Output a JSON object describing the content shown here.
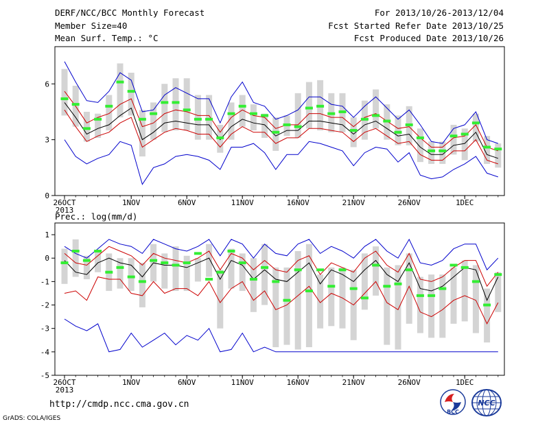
{
  "header": {
    "title": "DERF/NCC/BCC Monthly Forecast",
    "member_size": "Member Size=40",
    "variable": "Mean Surf. Temp.: °C",
    "period": "For 2013/10/26-2013/12/04",
    "started": "Fcst Started Refer Date 2013/10/25",
    "produced": "Fcst Produced Date 2013/10/26"
  },
  "footer": {
    "url": "http://cmdp.ncc.cma.gov.cn",
    "grads": "GrADS: COLA/IGES",
    "logo_left_text": "BCC",
    "logo_right_text": "NCC"
  },
  "colors": {
    "min_max": "#0000cc",
    "spread": "#cc0000",
    "mean": "#000000",
    "box": "#d4d4d4",
    "marker": "#33ee33"
  },
  "chart_data": [
    {
      "type": "line",
      "variable": "Mean Surf. Temp.: °C",
      "x_ticks": [
        "26OCT",
        "1NOV",
        "6NOV",
        "11NOV",
        "16NOV",
        "21NOV",
        "26NOV",
        "1DEC"
      ],
      "x_sub": "2013",
      "ylim": [
        0,
        8
      ],
      "yticks": [
        0,
        3,
        6
      ],
      "series": [
        {
          "role": "max",
          "values": [
            7.2,
            6.1,
            5.1,
            5.0,
            5.6,
            6.6,
            6.2,
            4.5,
            4.6,
            5.4,
            5.8,
            5.5,
            5.2,
            5.2,
            3.9,
            5.3,
            6.1,
            5.0,
            4.8,
            4.1,
            4.3,
            4.6,
            5.3,
            5.3,
            4.9,
            4.8,
            4.2,
            4.8,
            5.3,
            4.7,
            4.1,
            4.6,
            3.8,
            2.9,
            2.8,
            3.6,
            3.8,
            4.5,
            3.0,
            2.8
          ]
        },
        {
          "role": "upper",
          "values": [
            5.6,
            4.8,
            3.9,
            4.2,
            4.4,
            4.9,
            5.2,
            3.7,
            3.9,
            4.4,
            4.6,
            4.5,
            4.3,
            4.3,
            3.4,
            4.2,
            4.6,
            4.3,
            4.2,
            3.6,
            3.8,
            3.8,
            4.4,
            4.4,
            4.2,
            4.2,
            3.7,
            4.2,
            4.4,
            4.0,
            3.6,
            3.7,
            3.1,
            2.6,
            2.6,
            3.1,
            3.2,
            3.8,
            2.6,
            2.4
          ]
        },
        {
          "role": "mean",
          "values": [
            5.0,
            4.2,
            3.3,
            3.6,
            3.8,
            4.3,
            4.7,
            3.0,
            3.4,
            3.9,
            4.0,
            3.9,
            3.8,
            3.8,
            3.0,
            3.7,
            4.1,
            3.9,
            3.8,
            3.2,
            3.5,
            3.5,
            4.0,
            4.0,
            3.9,
            3.8,
            3.3,
            3.8,
            4.0,
            3.6,
            3.2,
            3.3,
            2.6,
            2.2,
            2.2,
            2.7,
            2.8,
            3.4,
            2.2,
            2.0
          ]
        },
        {
          "role": "lower",
          "values": [
            4.6,
            3.7,
            2.9,
            3.2,
            3.4,
            3.9,
            4.2,
            2.6,
            3.0,
            3.4,
            3.6,
            3.5,
            3.3,
            3.3,
            2.6,
            3.3,
            3.7,
            3.4,
            3.4,
            2.8,
            3.1,
            3.1,
            3.6,
            3.6,
            3.5,
            3.4,
            2.9,
            3.4,
            3.6,
            3.2,
            2.8,
            2.9,
            2.2,
            1.9,
            1.9,
            2.4,
            2.4,
            3.0,
            1.9,
            1.7
          ]
        },
        {
          "role": "min",
          "values": [
            3.0,
            2.1,
            1.7,
            2.0,
            2.2,
            2.9,
            2.7,
            0.6,
            1.5,
            1.7,
            2.1,
            2.2,
            2.1,
            1.9,
            1.4,
            2.6,
            2.6,
            2.8,
            2.3,
            1.4,
            2.2,
            2.2,
            2.9,
            2.8,
            2.6,
            2.4,
            1.6,
            2.3,
            2.6,
            2.5,
            1.8,
            2.3,
            1.1,
            0.9,
            1.0,
            1.4,
            1.7,
            2.1,
            1.2,
            1.0
          ]
        },
        {
          "role": "box_top",
          "values": [
            6.8,
            5.9,
            4.5,
            4.4,
            5.4,
            7.1,
            6.6,
            4.6,
            5.0,
            6.0,
            6.3,
            6.3,
            5.4,
            5.4,
            3.8,
            5.0,
            5.4,
            4.9,
            4.4,
            4.2,
            4.3,
            5.5,
            6.1,
            6.2,
            5.5,
            5.5,
            4.2,
            5.1,
            5.7,
            4.9,
            4.3,
            4.8,
            3.6,
            2.9,
            2.9,
            3.8,
            3.6,
            4.4,
            3.2,
            2.8
          ]
        },
        {
          "role": "box_bottom",
          "values": [
            4.3,
            3.7,
            2.9,
            3.1,
            3.5,
            4.2,
            4.3,
            2.1,
            3.0,
            3.4,
            3.5,
            3.5,
            3.0,
            3.0,
            2.3,
            3.0,
            3.7,
            3.5,
            3.1,
            2.4,
            3.2,
            3.1,
            3.6,
            3.5,
            3.4,
            3.4,
            2.6,
            3.0,
            3.6,
            3.0,
            2.7,
            2.7,
            1.8,
            1.7,
            1.7,
            2.2,
            1.9,
            2.9,
            1.7,
            1.5
          ]
        },
        {
          "role": "marker",
          "values": [
            5.2,
            4.9,
            3.6,
            4.1,
            4.8,
            6.1,
            5.6,
            4.1,
            4.4,
            5.0,
            5.0,
            4.6,
            4.1,
            4.1,
            3.1,
            4.4,
            4.8,
            4.4,
            4.3,
            3.4,
            3.8,
            3.7,
            4.7,
            4.8,
            4.4,
            4.5,
            3.5,
            4.1,
            4.3,
            4.0,
            3.4,
            3.8,
            3.1,
            2.4,
            2.4,
            3.2,
            3.3,
            3.9,
            2.6,
            2.5
          ]
        }
      ]
    },
    {
      "type": "line",
      "variable": "Prec.: log(mm/d)",
      "x_ticks": [
        "26OCT",
        "1NOV",
        "6NOV",
        "11NOV",
        "16NOV",
        "21NOV",
        "26NOV",
        "1DEC"
      ],
      "x_sub": "2013",
      "ylim": [
        -5,
        1.5
      ],
      "yticks": [
        -5,
        -4,
        -3,
        -2,
        -1,
        0,
        1
      ],
      "series": [
        {
          "role": "max",
          "values": [
            0.5,
            0.2,
            0.0,
            0.4,
            0.8,
            0.6,
            0.5,
            0.2,
            0.8,
            0.6,
            0.4,
            0.3,
            0.5,
            0.8,
            0.1,
            0.8,
            0.6,
            0.0,
            0.6,
            0.2,
            0.1,
            0.6,
            0.8,
            0.2,
            0.5,
            0.3,
            0.0,
            0.5,
            0.8,
            0.3,
            0.0,
            0.8,
            -0.2,
            -0.3,
            -0.1,
            0.4,
            0.6,
            0.6,
            -0.5,
            0.0
          ]
        },
        {
          "role": "upper",
          "values": [
            0.2,
            -0.2,
            -0.3,
            0.1,
            0.5,
            0.3,
            0.1,
            -0.3,
            0.2,
            0.0,
            -0.1,
            -0.2,
            0.0,
            0.3,
            -0.5,
            0.2,
            0.0,
            -0.5,
            -0.1,
            -0.5,
            -0.6,
            -0.1,
            0.1,
            -0.7,
            -0.2,
            -0.4,
            -0.6,
            0.0,
            0.3,
            -0.3,
            -0.6,
            0.2,
            -0.9,
            -1.0,
            -0.8,
            -0.4,
            -0.1,
            -0.1,
            -1.2,
            -0.6
          ]
        },
        {
          "role": "mean",
          "values": [
            -0.1,
            -0.6,
            -0.7,
            -0.2,
            0.0,
            -0.2,
            -0.3,
            -0.8,
            -0.2,
            -0.3,
            -0.3,
            -0.4,
            -0.2,
            0.0,
            -0.9,
            -0.1,
            -0.3,
            -0.9,
            -0.5,
            -0.9,
            -1.0,
            -0.6,
            -0.2,
            -1.1,
            -0.5,
            -0.7,
            -1.0,
            -0.5,
            -0.1,
            -0.7,
            -1.0,
            -0.2,
            -1.3,
            -1.4,
            -1.2,
            -0.8,
            -0.4,
            -0.5,
            -1.8,
            -0.8
          ]
        },
        {
          "role": "lower",
          "values": [
            -1.5,
            -1.4,
            -1.8,
            -0.8,
            -0.9,
            -0.9,
            -1.5,
            -1.6,
            -1.0,
            -1.5,
            -1.3,
            -1.3,
            -1.6,
            -1.0,
            -1.9,
            -1.3,
            -1.0,
            -1.8,
            -1.4,
            -2.2,
            -2.0,
            -1.6,
            -1.2,
            -1.9,
            -1.5,
            -1.7,
            -2.0,
            -1.5,
            -1.0,
            -1.9,
            -2.2,
            -1.2,
            -2.3,
            -2.5,
            -2.2,
            -1.8,
            -1.6,
            -1.8,
            -2.8,
            -1.9
          ]
        },
        {
          "role": "min",
          "values": [
            -2.6,
            -2.9,
            -3.1,
            -2.8,
            -4.0,
            -3.9,
            -3.2,
            -3.8,
            -3.5,
            -3.2,
            -3.7,
            -3.3,
            -3.5,
            -3.0,
            -4.0,
            -3.9,
            -3.2,
            -4.0,
            -3.8,
            -4.0,
            -4.0,
            -4.0,
            -4.0,
            -4.0,
            -4.0,
            -4.0,
            -4.0,
            -4.0,
            -4.0,
            -4.0,
            -4.0,
            -4.0,
            -4.0,
            -4.0,
            -4.0,
            -4.0,
            -4.0,
            -4.0,
            -4.0,
            -4.0
          ]
        },
        {
          "role": "box_top",
          "values": [
            0.4,
            0.8,
            0.1,
            0.3,
            0.2,
            0.0,
            0.0,
            -0.2,
            0.6,
            0.2,
            0.5,
            0.1,
            0.0,
            0.6,
            -0.5,
            0.4,
            0.2,
            0.0,
            0.6,
            -0.4,
            -0.4,
            0.3,
            0.6,
            -0.7,
            -0.4,
            -0.4,
            -0.5,
            0.2,
            0.5,
            -0.4,
            -0.3,
            0.2,
            -0.8,
            -0.7,
            -0.7,
            -0.4,
            -0.1,
            -0.3,
            -1.3,
            -0.6
          ]
        },
        {
          "role": "box_bottom",
          "values": [
            -1.1,
            -0.8,
            -0.9,
            -0.6,
            -1.4,
            -1.3,
            -1.4,
            -2.1,
            -1.0,
            -1.3,
            -1.4,
            -1.4,
            -1.0,
            -0.8,
            -3.0,
            -1.3,
            -1.4,
            -2.3,
            -2.0,
            -3.8,
            -3.7,
            -3.9,
            -3.8,
            -3.0,
            -2.9,
            -3.0,
            -3.5,
            -2.2,
            -1.6,
            -3.7,
            -3.9,
            -2.8,
            -3.2,
            -3.4,
            -3.4,
            -2.8,
            -2.7,
            -3.2,
            -3.6,
            -2.3
          ]
        },
        {
          "role": "marker",
          "values": [
            -0.2,
            0.3,
            -0.1,
            0.3,
            -0.6,
            -0.4,
            -0.8,
            -1.0,
            -0.1,
            -0.2,
            -0.3,
            -0.2,
            0.2,
            -0.9,
            -0.6,
            0.3,
            -0.2,
            -0.9,
            -0.4,
            -1.0,
            -1.8,
            -0.5,
            -1.4,
            -0.5,
            -1.2,
            -0.5,
            -1.3,
            -1.7,
            -0.3,
            -1.2,
            -1.1,
            -0.5,
            -1.6,
            -1.6,
            -1.3,
            -0.3,
            -0.4,
            -1.0,
            -2.0,
            -0.7
          ]
        }
      ]
    }
  ]
}
